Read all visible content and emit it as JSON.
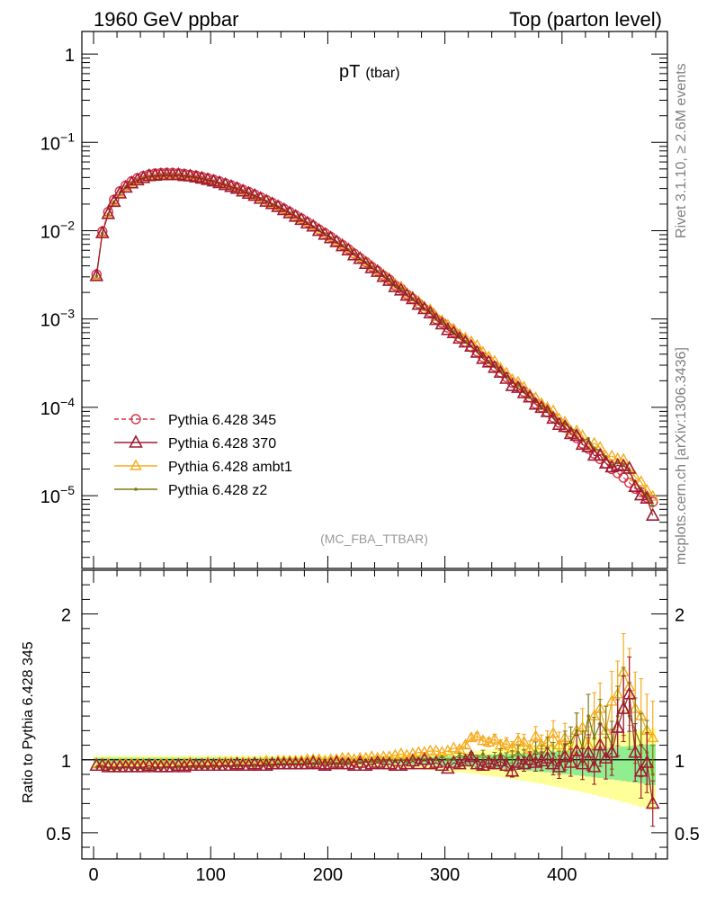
{
  "header": {
    "left": "1960 GeV ppbar",
    "right": "Top (parton level)"
  },
  "plot_title": "pT",
  "plot_title_sub": "(tbar)",
  "analysis_label": "(MC_FBA_TTBAR)",
  "side_text": {
    "rivet": "Rivet 3.1.10, ≥ 2.6M events",
    "mcplots": "mcplots.cern.ch [arXiv:1306.3436]"
  },
  "colors": {
    "s345": "#d6364e",
    "s370": "#a01b32",
    "ambt1": "#f5ab1c",
    "z2": "#7a7a10",
    "band_inner": "#90ee90",
    "band_outer": "#ffff99"
  },
  "legend": [
    {
      "label": "Pythia 6.428 345",
      "series": "s345"
    },
    {
      "label": "Pythia 6.428 370",
      "series": "s370"
    },
    {
      "label": "Pythia 6.428 ambt1",
      "series": "ambt1"
    },
    {
      "label": "Pythia 6.428 z2",
      "series": "z2"
    }
  ],
  "chart_data": [
    {
      "type": "line",
      "panel": "main",
      "yscale": "log",
      "xlim": [
        -10,
        490
      ],
      "ylim": [
        1.5e-06,
        1.8
      ],
      "yticks": [
        {
          "value": 1,
          "label": "1"
        },
        {
          "value": 0.1,
          "label": "10^-1"
        },
        {
          "value": 0.01,
          "label": "10^-2"
        },
        {
          "value": 0.001,
          "label": "10^-3"
        },
        {
          "value": 0.0001,
          "label": "10^-4"
        },
        {
          "value": 1e-05,
          "label": "10^-5"
        }
      ],
      "legend_position": "lower-left",
      "x": [
        2.5,
        7.5,
        12.5,
        17.5,
        22.5,
        27.5,
        32.5,
        37.5,
        42.5,
        47.5,
        52.5,
        57.5,
        62.5,
        67.5,
        72.5,
        77.5,
        82.5,
        87.5,
        92.5,
        97.5,
        102.5,
        107.5,
        112.5,
        117.5,
        122.5,
        127.5,
        132.5,
        137.5,
        142.5,
        147.5,
        152.5,
        157.5,
        162.5,
        167.5,
        172.5,
        177.5,
        182.5,
        187.5,
        192.5,
        197.5,
        202.5,
        207.5,
        212.5,
        217.5,
        222.5,
        227.5,
        232.5,
        237.5,
        242.5,
        247.5,
        252.5,
        257.5,
        262.5,
        267.5,
        272.5,
        277.5,
        282.5,
        287.5,
        292.5,
        297.5,
        302.5,
        307.5,
        312.5,
        317.5,
        322.5,
        327.5,
        332.5,
        337.5,
        342.5,
        347.5,
        352.5,
        357.5,
        362.5,
        367.5,
        372.5,
        377.5,
        382.5,
        387.5,
        392.5,
        397.5,
        402.5,
        407.5,
        412.5,
        417.5,
        422.5,
        427.5,
        432.5,
        437.5,
        442.5,
        447.5,
        452.5,
        457.5,
        462.5,
        467.5,
        472.5,
        477.5
      ],
      "y": [
        0.0032,
        0.0098,
        0.0163,
        0.0224,
        0.0279,
        0.0325,
        0.0363,
        0.0393,
        0.0416,
        0.0433,
        0.0443,
        0.0449,
        0.0451,
        0.045,
        0.0446,
        0.0439,
        0.043,
        0.0419,
        0.0406,
        0.0392,
        0.0377,
        0.0361,
        0.0344,
        0.0327,
        0.0309,
        0.0291,
        0.0274,
        0.0257,
        0.024,
        0.0223,
        0.0207,
        0.0192,
        0.0177,
        0.0163,
        0.0149,
        0.0137,
        0.0125,
        0.0114,
        0.0103,
        0.0094,
        0.0085,
        0.0076,
        0.0069,
        0.0062,
        0.0055,
        0.0049,
        0.0044,
        0.0039,
        0.0035,
        0.0031,
        0.0028,
        0.0024,
        0.0022,
        0.0019,
        0.0017,
        0.0015,
        0.0013,
        0.0012,
        0.001,
        0.00091,
        0.0008,
        0.00071,
        0.00062,
        0.00055,
        0.00048,
        0.00043,
        0.00037,
        0.00033,
        0.00029,
        0.00025,
        0.00022,
        0.00019,
        0.00017,
        0.00015,
        0.00013,
        0.00011,
        0.0001,
        8.8e-05,
        7.7e-05,
        6.7e-05,
        5.9e-05,
        5.1e-05,
        4.5e-05,
        3.9e-05,
        3.4e-05,
        3e-05,
        2.6e-05,
        2.3e-05,
        2e-05,
        1.8e-05,
        1.6e-05,
        1.4e-05,
        1.2e-05,
        1.1e-05,
        9.5e-06,
        8.5e-06
      ],
      "series": [
        {
          "name": "Pythia 6.428 345",
          "key": "s345",
          "marker": "circle",
          "ratio": [
            1,
            1,
            1,
            1,
            1,
            1,
            1,
            1,
            1,
            1,
            1,
            1,
            1,
            1,
            1,
            1,
            1,
            1,
            1,
            1,
            1,
            1,
            1,
            1,
            1,
            1,
            1,
            1,
            1,
            1,
            1,
            1,
            1,
            1,
            1,
            1,
            1,
            1,
            1,
            1,
            1,
            1,
            1,
            1,
            1,
            1,
            1,
            1,
            1,
            1,
            1,
            1,
            1,
            1,
            1,
            1,
            1,
            1,
            1,
            1,
            1,
            1,
            1,
            1,
            1,
            1,
            1,
            1,
            1,
            1,
            1,
            1,
            1,
            1,
            1,
            1,
            1,
            1,
            1,
            1,
            1,
            1,
            1,
            1,
            1,
            1,
            1,
            1,
            1,
            1,
            1,
            1,
            1,
            1,
            1,
            1
          ]
        },
        {
          "name": "Pythia 6.428 370",
          "key": "s370",
          "marker": "triangle-open",
          "ratio": [
            0.96,
            0.96,
            0.95,
            0.95,
            0.95,
            0.95,
            0.95,
            0.95,
            0.95,
            0.96,
            0.95,
            0.95,
            0.95,
            0.95,
            0.96,
            0.95,
            0.96,
            0.96,
            0.96,
            0.96,
            0.96,
            0.96,
            0.96,
            0.96,
            0.97,
            0.96,
            0.96,
            0.97,
            0.96,
            0.96,
            0.97,
            0.97,
            0.97,
            0.97,
            0.97,
            0.97,
            0.97,
            0.98,
            0.97,
            0.96,
            0.97,
            0.98,
            0.97,
            0.97,
            0.96,
            0.98,
            0.96,
            0.97,
            0.98,
            0.97,
            0.97,
            0.96,
            0.96,
            0.97,
            0.99,
            0.97,
            1.0,
            0.97,
            0.98,
            0.96,
            0.94,
            0.98,
            0.97,
            0.99,
            1.02,
            0.97,
            0.96,
            0.98,
            0.97,
            0.99,
            0.96,
            0.92,
            0.98,
            0.97,
            1.0,
            0.98,
            0.99,
            1.01,
            0.97,
            0.95,
            1.02,
            0.98,
            1.06,
            0.97,
            1.05,
            0.95,
            1.1,
            1.01,
            1.05,
            1.22,
            1.35,
            1.45,
            1.05,
            0.92,
            0.98,
            0.7
          ]
        },
        {
          "name": "Pythia 6.428 ambt1",
          "key": "ambt1",
          "marker": "triangle-filled",
          "ratio": [
            0.97,
            0.97,
            0.97,
            0.96,
            0.97,
            0.97,
            0.97,
            0.97,
            0.97,
            0.97,
            0.97,
            0.97,
            0.97,
            0.97,
            0.97,
            0.97,
            0.98,
            0.97,
            0.97,
            0.98,
            0.97,
            0.98,
            0.98,
            0.98,
            0.98,
            0.98,
            0.98,
            0.98,
            0.98,
            0.99,
            0.98,
            0.99,
            0.99,
            0.99,
            0.99,
            0.99,
            1.0,
            1.0,
            1.0,
            0.99,
            1.0,
            1.0,
            1.01,
            1.01,
            1.0,
            1.01,
            1.01,
            1.02,
            1.01,
            1.02,
            1.02,
            1.03,
            1.04,
            1.03,
            1.04,
            1.05,
            1.05,
            1.06,
            1.06,
            1.05,
            1.06,
            1.08,
            1.07,
            1.1,
            1.15,
            1.16,
            1.13,
            1.12,
            1.14,
            1.1,
            1.11,
            1.08,
            1.13,
            1.12,
            1.07,
            1.16,
            1.1,
            1.12,
            1.18,
            1.1,
            1.15,
            1.06,
            1.2,
            1.22,
            1.1,
            1.3,
            1.35,
            1.2,
            1.4,
            1.45,
            1.6,
            1.5,
            1.35,
            1.3,
            1.2,
            1.15
          ]
        },
        {
          "name": "Pythia 6.428 z2",
          "key": "z2",
          "marker": "dot",
          "ratio": [
            0.95,
            0.95,
            0.94,
            0.94,
            0.94,
            0.95,
            0.94,
            0.94,
            0.94,
            0.94,
            0.94,
            0.94,
            0.95,
            0.94,
            0.95,
            0.95,
            0.95,
            0.95,
            0.95,
            0.95,
            0.96,
            0.95,
            0.96,
            0.95,
            0.96,
            0.96,
            0.96,
            0.96,
            0.96,
            0.97,
            0.96,
            0.97,
            0.97,
            0.97,
            0.97,
            0.97,
            0.98,
            0.97,
            0.98,
            0.98,
            0.98,
            0.97,
            0.98,
            0.98,
            0.99,
            0.98,
            0.99,
            0.99,
            0.99,
            0.99,
            1.0,
            0.99,
            1.0,
            0.99,
            1.0,
            1.01,
            1.0,
            1.01,
            1.0,
            1.02,
            1.0,
            1.01,
            1.03,
            1.02,
            1.03,
            1.01,
            1.04,
            1.0,
            1.02,
            1.04,
            1.01,
            1.02,
            1.05,
            1.02,
            1.0,
            1.06,
            1.03,
            1.08,
            1.04,
            0.98,
            1.1,
            1.12,
            1.2,
            1.08,
            1.3,
            1.15,
            1.25,
            1.2,
            1.1,
            1.3,
            1.4,
            1.3,
            1.2,
            1.1,
            1.05,
            0.9
          ]
        }
      ]
    },
    {
      "type": "line",
      "panel": "ratio",
      "ylabel": "Ratio to Pythia 6.428 345",
      "xlim": [
        -10,
        490
      ],
      "ylim": [
        0.32,
        2.3
      ],
      "yticks": [
        {
          "value": 0.5,
          "label": "0.5"
        },
        {
          "value": 1,
          "label": "1"
        },
        {
          "value": 2,
          "label": "2"
        }
      ],
      "xticks": [
        {
          "value": 0,
          "label": "0"
        },
        {
          "value": 100,
          "label": "100"
        },
        {
          "value": 200,
          "label": "200"
        },
        {
          "value": 300,
          "label": "300"
        },
        {
          "value": 400,
          "label": "400"
        }
      ]
    }
  ]
}
